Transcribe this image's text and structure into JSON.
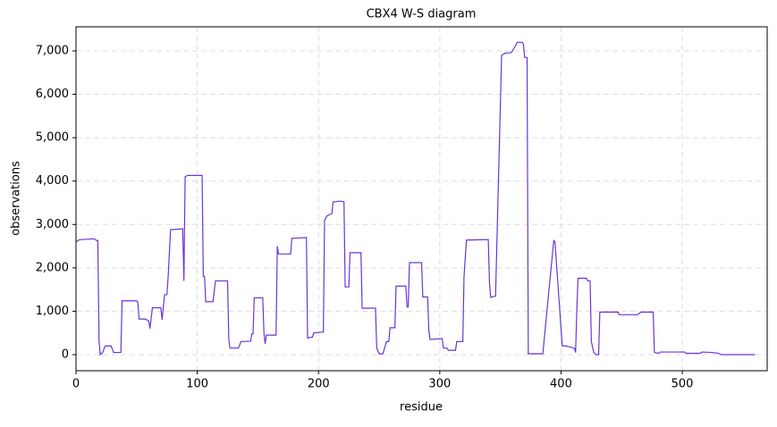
{
  "chart_data": {
    "type": "line",
    "title": "CBX4 W-S diagram",
    "x_label": "residue",
    "y_label": "observations",
    "color": "#6a35d6",
    "grid": true,
    "xlim": [
      0,
      570
    ],
    "ylim": [
      -371,
      7556
    ],
    "xticks": [
      0,
      100,
      200,
      300,
      400,
      500
    ],
    "yticks": [
      0,
      {
        "value": 1000,
        "label": "1,000"
      },
      {
        "value": 2000,
        "label": "2,000"
      },
      {
        "value": 3000,
        "label": "3,000"
      },
      {
        "value": 4000,
        "label": "4,000"
      },
      {
        "value": 5000,
        "label": "5,000"
      },
      {
        "value": 6000,
        "label": "6,000"
      },
      {
        "value": 7000,
        "label": "7,000"
      }
    ],
    "x": [
      0,
      3,
      15,
      17,
      18,
      19,
      20,
      22,
      24,
      29,
      31,
      37,
      38,
      50,
      51,
      52,
      57,
      60,
      61,
      63,
      70,
      71,
      73,
      75,
      76,
      78,
      88,
      89,
      90,
      92,
      104,
      105,
      106,
      107,
      113,
      115,
      125,
      126,
      127,
      134,
      136,
      144,
      145,
      146,
      147,
      154,
      155,
      156,
      157,
      165,
      166,
      167,
      177,
      178,
      190,
      191,
      193,
      195,
      196,
      204,
      205,
      207,
      211,
      212,
      218,
      221,
      222,
      225,
      226,
      235,
      236,
      247,
      248,
      250,
      253,
      254,
      256,
      258,
      259,
      263,
      264,
      272,
      273,
      274,
      275,
      285,
      286,
      290,
      291,
      292,
      302,
      303,
      306,
      307,
      313,
      314,
      319,
      320,
      322,
      338,
      340,
      341,
      342,
      346,
      351,
      354,
      359,
      361,
      364,
      368,
      369,
      370,
      372,
      373,
      385,
      394,
      395,
      401,
      404,
      411,
      412,
      413,
      414,
      421,
      422,
      424,
      425,
      427,
      429,
      431,
      432,
      447,
      448,
      463,
      466,
      476,
      477,
      480,
      482,
      502,
      503,
      515,
      516,
      525,
      530,
      532,
      560
    ],
    "values": [
      2600,
      2650,
      2670,
      2630,
      2630,
      300,
      0,
      50,
      200,
      200,
      50,
      50,
      1240,
      1240,
      1200,
      820,
      820,
      780,
      600,
      1080,
      1080,
      800,
      1380,
      1380,
      1800,
      2880,
      2900,
      1700,
      4100,
      4130,
      4130,
      1800,
      1800,
      1220,
      1220,
      1700,
      1700,
      350,
      150,
      150,
      300,
      310,
      480,
      480,
      1310,
      1310,
      500,
      250,
      450,
      450,
      2500,
      2320,
      2320,
      2680,
      2700,
      380,
      400,
      400,
      500,
      520,
      3100,
      3200,
      3250,
      3520,
      3540,
      3520,
      1560,
      1560,
      2350,
      2350,
      1070,
      1070,
      150,
      20,
      20,
      100,
      300,
      300,
      620,
      620,
      1580,
      1580,
      1100,
      1100,
      2120,
      2120,
      1330,
      1330,
      550,
      350,
      370,
      150,
      150,
      100,
      100,
      300,
      300,
      1800,
      2640,
      2650,
      2650,
      1650,
      1320,
      1350,
      6900,
      6950,
      6960,
      7050,
      7200,
      7200,
      7150,
      6850,
      6850,
      20,
      20,
      2630,
      2600,
      200,
      200,
      150,
      50,
      1000,
      1760,
      1760,
      1700,
      1700,
      300,
      50,
      0,
      0,
      980,
      980,
      920,
      920,
      980,
      980,
      50,
      30,
      60,
      60,
      30,
      30,
      60,
      50,
      30,
      0,
      0
    ]
  }
}
